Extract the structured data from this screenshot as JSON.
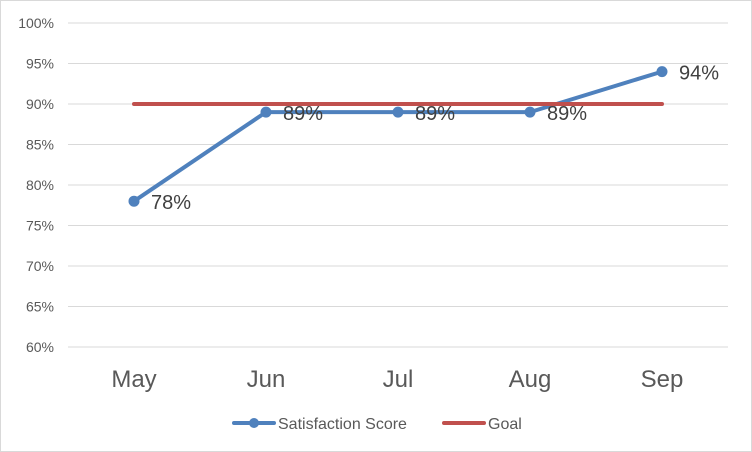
{
  "chart_data": {
    "type": "line",
    "categories": [
      "May",
      "Jun",
      "Jul",
      "Aug",
      "Sep"
    ],
    "series": [
      {
        "name": "Satisfaction Score",
        "values": [
          78,
          89,
          89,
          89,
          94
        ],
        "labels": [
          "78%",
          "89%",
          "89%",
          "89%",
          "94%"
        ],
        "color": "#4f81bd",
        "marker": "circle"
      },
      {
        "name": "Goal",
        "values": [
          90,
          90,
          90,
          90,
          90
        ],
        "color": "#c0504d",
        "marker": "none"
      }
    ],
    "y_ticks": [
      "60%",
      "65%",
      "70%",
      "75%",
      "80%",
      "85%",
      "90%",
      "95%",
      "100%"
    ],
    "ylim": [
      60,
      100
    ],
    "grid": true,
    "legend_position": "bottom"
  }
}
